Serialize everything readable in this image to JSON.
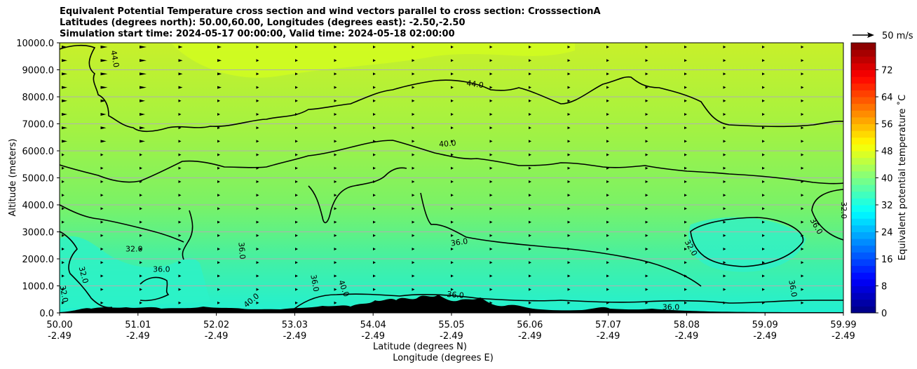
{
  "chart_data": {
    "type": "cross-section contour",
    "title_lines": [
      "Equivalent Potential Temperature cross section and wind vectors parallel to cross section: CrosssectionA",
      "Latitudes (degrees north): 50.00,60.00, Longitudes (degrees east): -2.50,-2.50",
      "Simulation start time: 2024-05-17 00:00:00, Valid time: 2024-05-18 02:00:00"
    ],
    "ylabel": "Altitude (meters)",
    "xlabel_1": "Latitude (degrees N)",
    "xlabel_2": "Longitude (degrees E)",
    "ylim": [
      0,
      10000
    ],
    "yticks": [
      "0.0",
      "1000.0",
      "2000.0",
      "3000.0",
      "4000.0",
      "5000.0",
      "6000.0",
      "7000.0",
      "8000.0",
      "9000.0",
      "10000.0"
    ],
    "xticks_lat": [
      "50.00",
      "51.01",
      "52.02",
      "53.03",
      "54.04",
      "55.05",
      "56.06",
      "57.07",
      "58.08",
      "59.09",
      "59.99"
    ],
    "xticks_lon": [
      "-2.49",
      "-2.49",
      "-2.49",
      "-2.49",
      "-2.49",
      "-2.49",
      "-2.49",
      "-2.49",
      "-2.49",
      "-2.49",
      "-2.49"
    ],
    "colorbar": {
      "label": "Equivalent potential temperature ˚C",
      "min": 0,
      "max": 80,
      "ticks": [
        "0",
        "8",
        "16",
        "24",
        "32",
        "40",
        "48",
        "56",
        "64",
        "72"
      ]
    },
    "wind_key": "50 m/s",
    "contour_labels": [
      {
        "text": "44.0",
        "x": 0.07,
        "y": 9400,
        "rot": 80
      },
      {
        "text": "44.0",
        "x": 0.53,
        "y": 8450,
        "rot": 8
      },
      {
        "text": "40.0",
        "x": 0.495,
        "y": 6250,
        "rot": -5
      },
      {
        "text": "36.0",
        "x": 0.51,
        "y": 2600,
        "rot": -8
      },
      {
        "text": "36.0",
        "x": 0.505,
        "y": 650,
        "rot": 5
      },
      {
        "text": "36.0",
        "x": 0.232,
        "y": 2300,
        "rot": 85
      },
      {
        "text": "32.0",
        "x": 0.095,
        "y": 2350,
        "rot": 0
      },
      {
        "text": "36.0",
        "x": 0.13,
        "y": 1600,
        "rot": 0
      },
      {
        "text": "32.0",
        "x": 0.03,
        "y": 1400,
        "rot": 75
      },
      {
        "text": "32.0",
        "x": 0.005,
        "y": 700,
        "rot": 80
      },
      {
        "text": "32.0",
        "x": 1.0,
        "y": 3800,
        "rot": 90
      },
      {
        "text": "36.0",
        "x": 0.965,
        "y": 3200,
        "rot": 60
      },
      {
        "text": "32.0",
        "x": 0.805,
        "y": 2400,
        "rot": 60
      },
      {
        "text": "36.0",
        "x": 0.935,
        "y": 900,
        "rot": 80
      },
      {
        "text": "36.0",
        "x": 0.325,
        "y": 1100,
        "rot": 80
      },
      {
        "text": "40.0",
        "x": 0.362,
        "y": 900,
        "rot": 70
      },
      {
        "text": "40.0",
        "x": 0.245,
        "y": 450,
        "rot": -40
      },
      {
        "text": "36.0",
        "x": 0.78,
        "y": 200,
        "rot": 0
      }
    ]
  }
}
